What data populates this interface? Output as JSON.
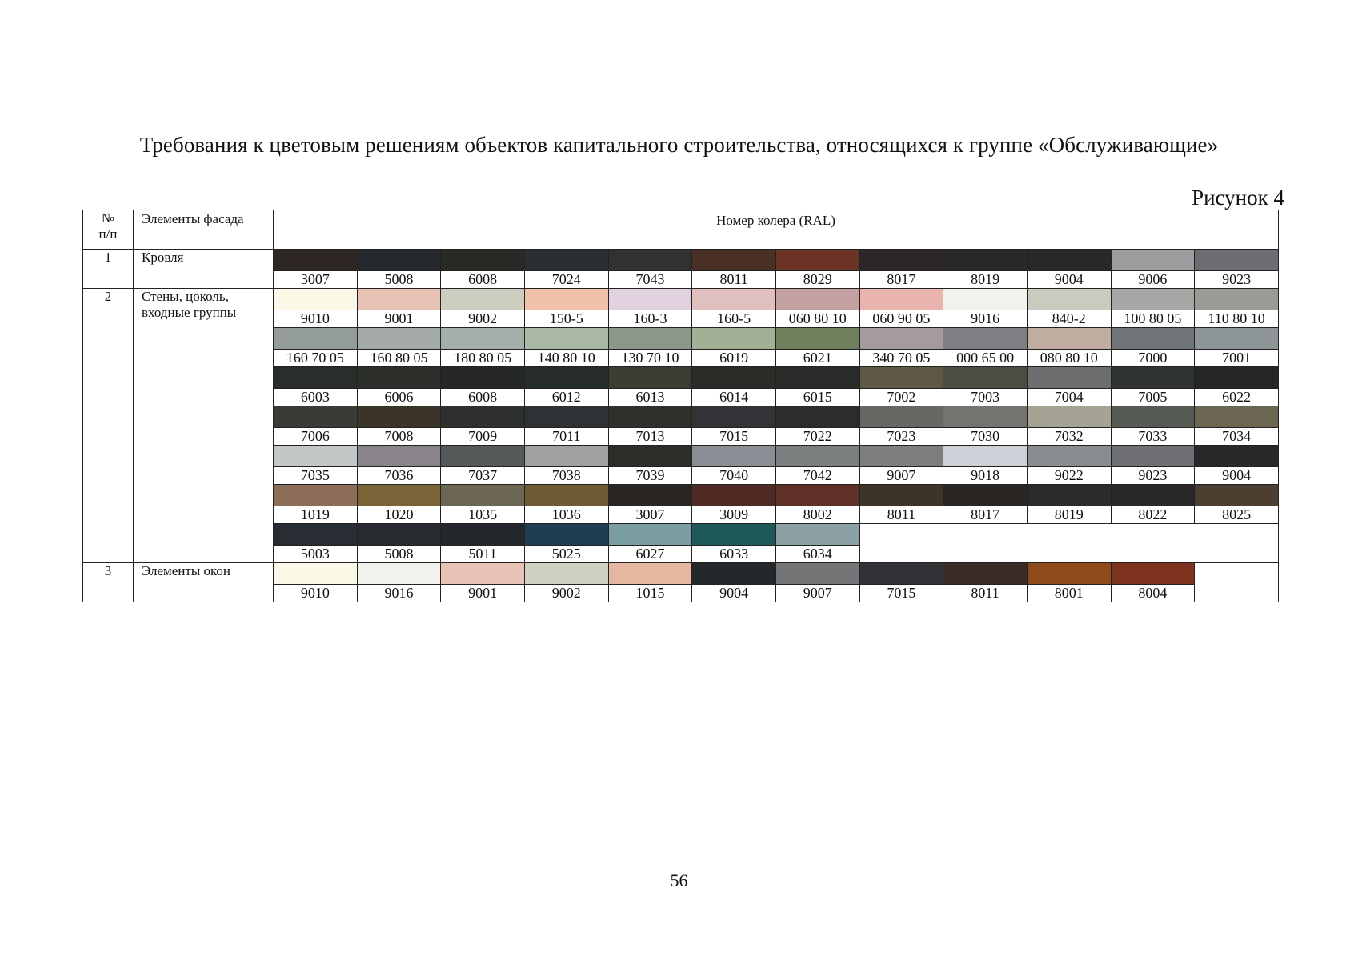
{
  "title": "Требования к цветовым решениям объектов капитального строительства, относящихся к группе «Обслуживающие»",
  "figure_label": "Рисунок 4",
  "table": {
    "header": {
      "num": "№\nп/п",
      "element": "Элементы фасада",
      "ral": "Номер колера (RAL)"
    },
    "groups": [
      {
        "num": "1",
        "element": "Кровля",
        "rows": [
          [
            {
              "code": "3007",
              "color": "#2e2624"
            },
            {
              "code": "5008",
              "color": "#25292d"
            },
            {
              "code": "6008",
              "color": "#272a25"
            },
            {
              "code": "7024",
              "color": "#2c2f31"
            },
            {
              "code": "7043",
              "color": "#2f3231"
            },
            {
              "code": "8011",
              "color": "#4a2f24"
            },
            {
              "code": "8029",
              "color": "#6a3325"
            },
            {
              "code": "8017",
              "color": "#2c2726"
            },
            {
              "code": "8019",
              "color": "#2a2828"
            },
            {
              "code": "9004",
              "color": "#27282a"
            },
            {
              "code": "9006",
              "color": "#9a9c9d"
            },
            {
              "code": "9023",
              "color": "#6b6d70"
            }
          ]
        ]
      },
      {
        "num": "2",
        "element": "Стены, цоколь,\nвходные группы",
        "rows": [
          [
            {
              "code": "9010",
              "color": "#fbf8e8"
            },
            {
              "code": "9001",
              "color": "#e8c2b5"
            },
            {
              "code": "9002",
              "color": "#cdcebf"
            },
            {
              "code": "150-5",
              "color": "#f0c1ab"
            },
            {
              "code": "160-3",
              "color": "#e2d1de"
            },
            {
              "code": "160-5",
              "color": "#e0bfbf"
            },
            {
              "code": "060 80 10",
              "color": "#c4a1a0"
            },
            {
              "code": "060 90 05",
              "color": "#e8b4ad"
            },
            {
              "code": "9016",
              "color": "#f1f2ee"
            },
            {
              "code": "840-2",
              "color": "#c8ccbf"
            },
            {
              "code": "100 80 05",
              "color": "#a7a8a6"
            },
            {
              "code": "110 80 10",
              "color": "#9a9b94"
            }
          ],
          [
            {
              "code": "160 70 05",
              "color": "#949c98"
            },
            {
              "code": "160 80 05",
              "color": "#a5aca8"
            },
            {
              "code": "180 80 05",
              "color": "#a3ada9"
            },
            {
              "code": "140 80 10",
              "color": "#a8b8a2"
            },
            {
              "code": "130 70 10",
              "color": "#8c9689"
            },
            {
              "code": "6019",
              "color": "#a2b096"
            },
            {
              "code": "6021",
              "color": "#6f7f5d"
            },
            {
              "code": "340 70 05",
              "color": "#a59b9f"
            },
            {
              "code": "000 65 00",
              "color": "#7f8083"
            },
            {
              "code": "080 80 10",
              "color": "#c1aca2"
            },
            {
              "code": "7000",
              "color": "#6e7477"
            },
            {
              "code": "7001",
              "color": "#8e9597"
            }
          ],
          [
            {
              "code": "6003",
              "color": "#292e2b"
            },
            {
              "code": "6006",
              "color": "#2d2f2b"
            },
            {
              "code": "6008",
              "color": "#252826"
            },
            {
              "code": "6012",
              "color": "#262b2b"
            },
            {
              "code": "6013",
              "color": "#3b3d33"
            },
            {
              "code": "6014",
              "color": "#2a2c27"
            },
            {
              "code": "6015",
              "color": "#2a2c2a"
            },
            {
              "code": "7002",
              "color": "#5e5945"
            },
            {
              "code": "7003",
              "color": "#4c4c44"
            },
            {
              "code": "7004",
              "color": "#6c6e70"
            },
            {
              "code": "7005",
              "color": "#2f3331"
            },
            {
              "code": "6022",
              "color": "#262624"
            }
          ],
          [
            {
              "code": "7006",
              "color": "#3b3a36"
            },
            {
              "code": "7008",
              "color": "#3a3528"
            },
            {
              "code": "7009",
              "color": "#2d302f"
            },
            {
              "code": "7011",
              "color": "#2d3234"
            },
            {
              "code": "7013",
              "color": "#2f3029"
            },
            {
              "code": "7015",
              "color": "#313336"
            },
            {
              "code": "7022",
              "color": "#2b2c2b"
            },
            {
              "code": "7023",
              "color": "#666863"
            },
            {
              "code": "7030",
              "color": "#75736e"
            },
            {
              "code": "7032",
              "color": "#a6a294"
            },
            {
              "code": "7033",
              "color": "#555a55"
            },
            {
              "code": "7034",
              "color": "#6b6652"
            }
          ],
          [
            {
              "code": "7035",
              "color": "#c3c6c6"
            },
            {
              "code": "7036",
              "color": "#88848a"
            },
            {
              "code": "7037",
              "color": "#55595a"
            },
            {
              "code": "7038",
              "color": "#9fa1a0"
            },
            {
              "code": "7039",
              "color": "#2f2d2a"
            },
            {
              "code": "7040",
              "color": "#8a8e95"
            },
            {
              "code": "7042",
              "color": "#7c7f80"
            },
            {
              "code": "9007",
              "color": "#7e7e7d"
            },
            {
              "code": "9018",
              "color": "#cdd0d6"
            },
            {
              "code": "9022",
              "color": "#8a8d8f"
            },
            {
              "code": "9023",
              "color": "#6e7073"
            },
            {
              "code": "9004",
              "color": "#272a29"
            }
          ],
          [
            {
              "code": "1019",
              "color": "#8c6d57"
            },
            {
              "code": "1020",
              "color": "#7a6336"
            },
            {
              "code": "1035",
              "color": "#6c6654"
            },
            {
              "code": "1036",
              "color": "#6f5a36"
            },
            {
              "code": "3007",
              "color": "#2a2523"
            },
            {
              "code": "3009",
              "color": "#4f2a24"
            },
            {
              "code": "8002",
              "color": "#5e3026"
            },
            {
              "code": "8011",
              "color": "#3e3329"
            },
            {
              "code": "8017",
              "color": "#2b2624"
            },
            {
              "code": "8019",
              "color": "#2b2b2b"
            },
            {
              "code": "8022",
              "color": "#2a2828"
            },
            {
              "code": "8025",
              "color": "#4d3e32"
            }
          ],
          [
            {
              "code": "5003",
              "color": "#272d33"
            },
            {
              "code": "5008",
              "color": "#272b30"
            },
            {
              "code": "5011",
              "color": "#24282c"
            },
            {
              "code": "5025",
              "color": "#1f3e52"
            },
            {
              "code": "6027",
              "color": "#7a9ea1"
            },
            {
              "code": "6033",
              "color": "#1f5a5b"
            },
            {
              "code": "6034",
              "color": "#8ba1a6"
            }
          ]
        ]
      },
      {
        "num": "3",
        "element": "Элементы окон",
        "rows": [
          [
            {
              "code": "9010",
              "color": "#fbf8e8"
            },
            {
              "code": "9016",
              "color": "#f1f2ee"
            },
            {
              "code": "9001",
              "color": "#e9c3b6"
            },
            {
              "code": "9002",
              "color": "#cfd0c2"
            },
            {
              "code": "1015",
              "color": "#e6b7a0"
            },
            {
              "code": "9004",
              "color": "#25282a"
            },
            {
              "code": "9007",
              "color": "#747576"
            },
            {
              "code": "7015",
              "color": "#2f3134"
            },
            {
              "code": "8011",
              "color": "#3a2d28"
            },
            {
              "code": "8001",
              "color": "#8e4a1a"
            },
            {
              "code": "8004",
              "color": "#7d3320"
            }
          ]
        ]
      }
    ]
  },
  "page_number": "56"
}
